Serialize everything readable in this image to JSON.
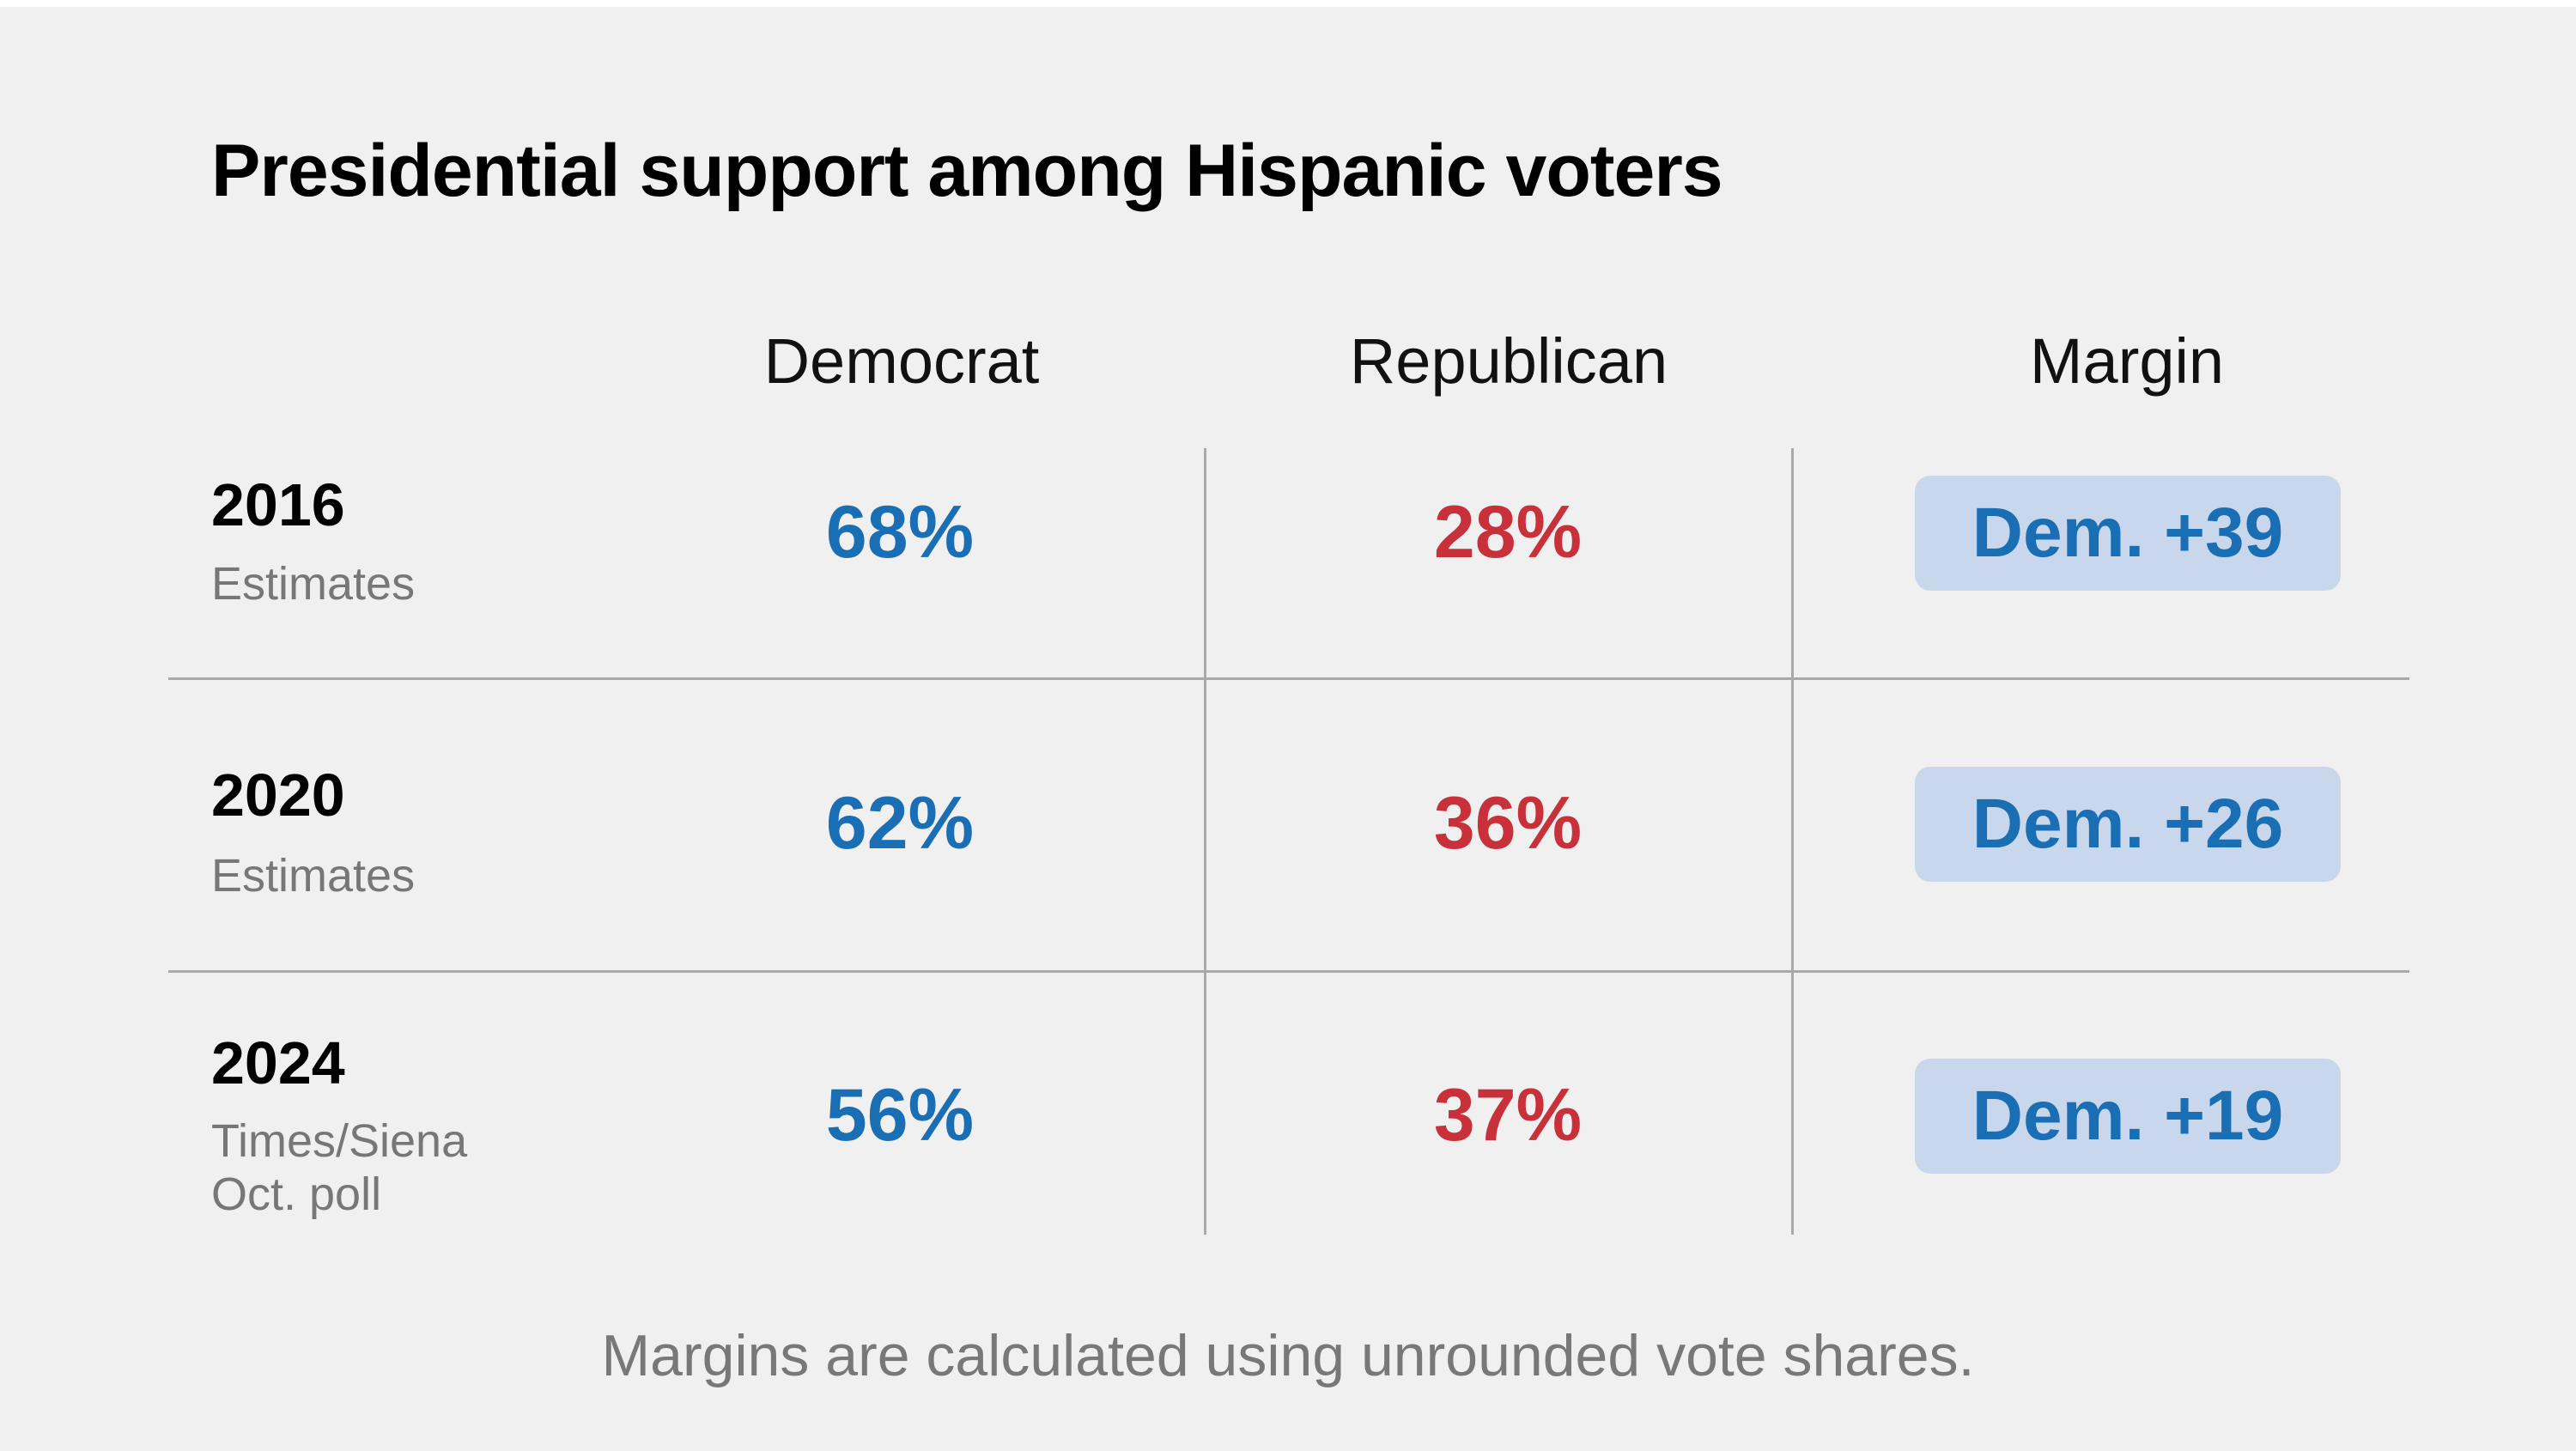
{
  "colors": {
    "background": "#f0f0f0",
    "democrat": "#1a6eb4",
    "republican": "#c8303a",
    "badge_bg": "#c9d7ec",
    "divider": "#a9a9a9",
    "muted_text": "#777777"
  },
  "title": "Presidential support among Hispanic voters",
  "headers": {
    "democrat": "Democrat",
    "republican": "Republican",
    "margin": "Margin"
  },
  "rows": [
    {
      "year": "2016",
      "sub1": "Estimates",
      "sub2": "",
      "dem": "68%",
      "rep": "28%",
      "margin": "Dem. +39"
    },
    {
      "year": "2020",
      "sub1": "Estimates",
      "sub2": "",
      "dem": "62%",
      "rep": "36%",
      "margin": "Dem. +26"
    },
    {
      "year": "2024",
      "sub1": "Times/Siena",
      "sub2": "Oct. poll",
      "dem": "56%",
      "rep": "37%",
      "margin": "Dem. +19"
    }
  ],
  "note": "Margins are calculated using unrounded vote shares.",
  "chart_data": {
    "type": "table",
    "title": "Presidential support among Hispanic voters",
    "columns": [
      "Democrat",
      "Republican",
      "Margin"
    ],
    "rows": [
      {
        "year": 2016,
        "source": "Estimates",
        "democrat": 68,
        "republican": 28,
        "margin": "Dem. +39"
      },
      {
        "year": 2020,
        "source": "Estimates",
        "democrat": 62,
        "republican": 36,
        "margin": "Dem. +26"
      },
      {
        "year": 2024,
        "source": "Times/Siena Oct. poll",
        "democrat": 56,
        "republican": 37,
        "margin": "Dem. +19"
      }
    ],
    "note": "Margins are calculated using unrounded vote shares."
  }
}
